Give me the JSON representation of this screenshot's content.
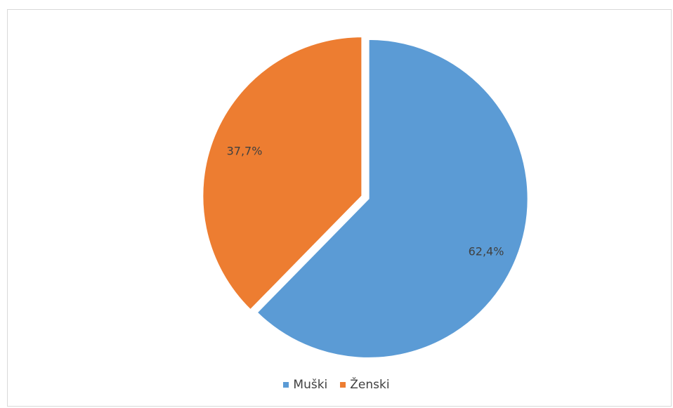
{
  "chart_data": {
    "type": "pie",
    "title": "",
    "categories": [
      "Muški",
      "Ženski"
    ],
    "values": [
      62.4,
      37.7
    ],
    "data_labels": [
      "62,4%",
      "37,7%"
    ],
    "colors": [
      "#5B9BD5",
      "#ED7D31"
    ],
    "legend_position": "bottom",
    "exploded": true
  },
  "legend": {
    "items": [
      {
        "label": "Muški",
        "color": "#5B9BD5"
      },
      {
        "label": "Ženski",
        "color": "#ED7D31"
      }
    ]
  }
}
